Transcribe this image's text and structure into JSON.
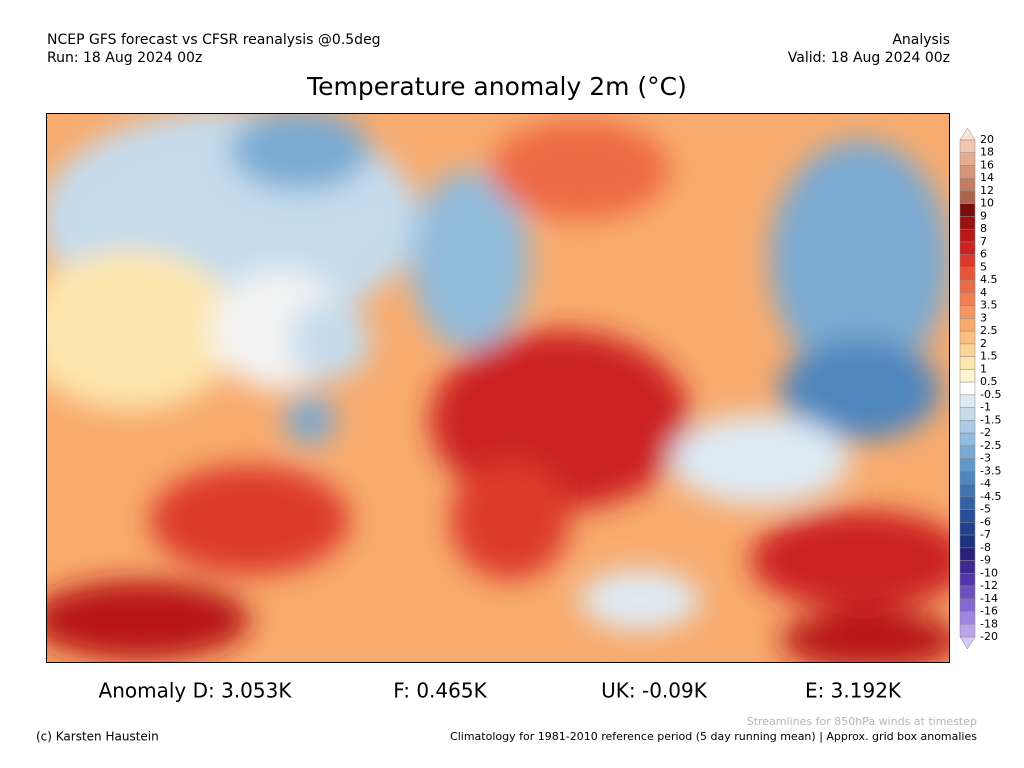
{
  "header": {
    "left_line1": "NCEP GFS forecast vs CFSR reanalysis @0.5deg",
    "left_line2": "Run: 18 Aug 2024 00z",
    "right_line1": "Analysis",
    "right_line2": "Valid: 18 Aug 2024 00z"
  },
  "title": "Temperature anomaly 2m (°C)",
  "colorbar": {
    "labels": [
      "20",
      "18",
      "16",
      "14",
      "12",
      "10",
      "9",
      "8",
      "7",
      "6",
      "5",
      "4.5",
      "4",
      "3.5",
      "3",
      "2.5",
      "2",
      "1.5",
      "1",
      "0.5",
      "-0.5",
      "-1",
      "-1.5",
      "-2",
      "-2.5",
      "-3",
      "-3.5",
      "-4",
      "-4.5",
      "-5",
      "-6",
      "-7",
      "-8",
      "-9",
      "-10",
      "-12",
      "-14",
      "-16",
      "-18",
      "-20"
    ],
    "colors": [
      "#fbe3d6",
      "#f2c6b0",
      "#e6ad92",
      "#d89478",
      "#c47c62",
      "#ad644e",
      "#7a0d0d",
      "#9c1111",
      "#b81818",
      "#cc2222",
      "#dc3b2c",
      "#e6553a",
      "#ee6b45",
      "#f28052",
      "#f5955f",
      "#f8ab6e",
      "#fbc07f",
      "#fcd594",
      "#fde6ad",
      "#fef3cf",
      "#ffffff",
      "#deebf5",
      "#c5dced",
      "#abcce4",
      "#92bcdb",
      "#7aaad2",
      "#6398c8",
      "#4f86bd",
      "#3f73b2",
      "#3361a6",
      "#2a4f99",
      "#23408c",
      "#1e327f",
      "#2a1f7a",
      "#3d2a8f",
      "#5038a8",
      "#6a50c0",
      "#8469d3",
      "#9e86e0",
      "#b9a6ec",
      "#d5c8f5"
    ]
  },
  "stats": [
    "Anomaly D: 3.053K",
    "F: 0.465K",
    "UK: -0.09K",
    "E: 3.192K"
  ],
  "footer": {
    "streamlines": "Streamlines for 850hPa winds at timestep",
    "credit": "(c) Karsten Haustein",
    "climatology": "Climatology for 1981-2010 reference period (5 day running mean) | Approx. grid box anomalies"
  }
}
